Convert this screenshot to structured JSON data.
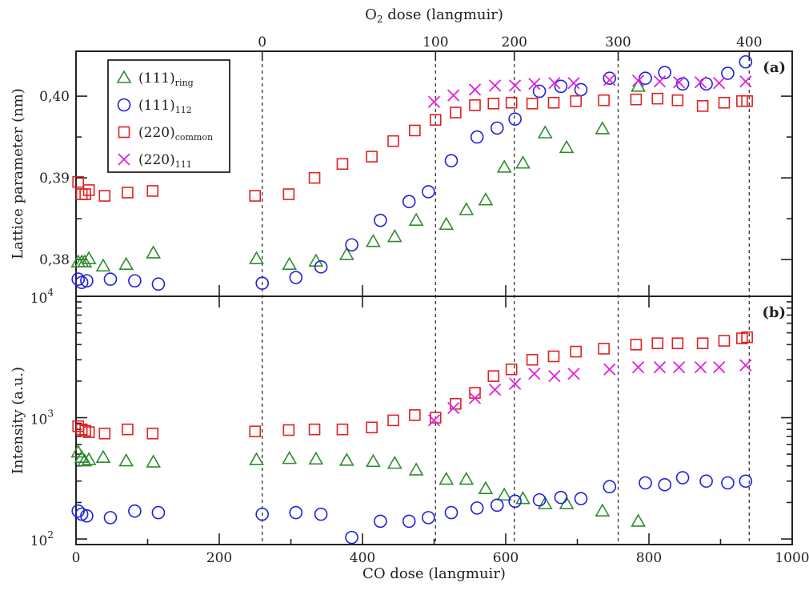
{
  "chart_data": {
    "type": "scatter",
    "colors": {
      "ring": "#2e8b2e",
      "p112": "#2020dd",
      "common": "#e02020",
      "p111": "#e020e0"
    },
    "x_axis": {
      "label": "CO dose (langmuir)",
      "range": [
        0,
        1000
      ],
      "ticks": [
        "0",
        "200",
        "400",
        "600",
        "800",
        "1000"
      ]
    },
    "top_axis": {
      "label_main": "O",
      "label_sub": "2",
      "label_tail": " dose (langmuir)",
      "ticks": [
        {
          "label": "0",
          "co": 260
        },
        {
          "label": "100",
          "co": 502
        },
        {
          "label": "200",
          "co": 612
        },
        {
          "label": "300",
          "co": 757
        },
        {
          "label": "400",
          "co": 940
        }
      ]
    },
    "dashed_lines_co": [
      260,
      502,
      612,
      757,
      940
    ],
    "legend": [
      {
        "key": "ring",
        "label_main": "(111)",
        "label_sub": "ring",
        "marker": "triangle",
        "color": "#2e8b2e"
      },
      {
        "key": "p112",
        "label_main": "(111)",
        "label_sub": "112",
        "marker": "circle",
        "color": "#2020dd"
      },
      {
        "key": "common",
        "label_main": "(220)",
        "label_sub": "common",
        "marker": "square",
        "color": "#e02020"
      },
      {
        "key": "p111",
        "label_main": "(220)",
        "label_sub": "111",
        "marker": "cross",
        "color": "#e020e0"
      }
    ],
    "panels": [
      {
        "id": "a",
        "panel_label": "(a)",
        "y_label": "Lattice parameter (nm)",
        "y_scale": "linear",
        "y_range": [
          0.3755,
          0.4055
        ],
        "y_ticks": [
          "0,38",
          "0,39",
          "0,40"
        ],
        "series": {
          "ring": {
            "x": [
              3,
              8,
              12,
              18,
              38,
              70,
              108,
              252,
              298,
              335,
              378,
              415,
              445,
              475,
              517,
              545,
              572,
              598,
              624,
              655,
              685,
              735,
              785
            ],
            "y": [
              0.3797,
              0.3797,
              0.3797,
              0.3801,
              0.3792,
              0.3794,
              0.3808,
              0.3801,
              0.3794,
              0.3798,
              0.3806,
              0.3822,
              0.3828,
              0.3848,
              0.3843,
              0.3861,
              0.3873,
              0.3913,
              0.3918,
              0.3955,
              0.3937,
              0.396,
              0.4012
            ]
          },
          "p112": {
            "x": [
              3,
              8,
              15,
              48,
              82,
              115,
              260,
              307,
              342,
              385,
              425,
              465,
              492,
              524,
              560,
              588,
              613,
              647,
              677,
              705,
              745,
              795,
              822,
              847,
              880,
              910,
              935
            ],
            "y": [
              0.3776,
              0.3772,
              0.3774,
              0.3776,
              0.3774,
              0.377,
              0.3771,
              0.3778,
              0.3791,
              0.3818,
              0.3848,
              0.3871,
              0.3883,
              0.3921,
              0.395,
              0.3961,
              0.3972,
              0.4006,
              0.4012,
              0.4008,
              0.4022,
              0.4022,
              0.4029,
              0.4015,
              0.4015,
              0.4028,
              0.4042
            ]
          },
          "common": {
            "x": [
              3,
              8,
              13,
              18,
              40,
              72,
              107,
              250,
              297,
              333,
              372,
              413,
              443,
              473,
              502,
              530,
              557,
              583,
              608,
              637,
              667,
              698,
              737,
              782,
              812,
              840,
              875,
              905,
              930,
              937
            ],
            "y": [
              0.3895,
              0.388,
              0.388,
              0.3885,
              0.3878,
              0.3882,
              0.3884,
              0.3878,
              0.388,
              0.39,
              0.3917,
              0.3926,
              0.3945,
              0.3958,
              0.3971,
              0.398,
              0.3989,
              0.3991,
              0.3992,
              0.3991,
              0.3992,
              0.3994,
              0.3995,
              0.3996,
              0.3997,
              0.3995,
              0.3988,
              0.3992,
              0.3994,
              0.3994
            ]
          },
          "p111": {
            "x": [
              500,
              527,
              557,
              585,
              613,
              640,
              668,
              695,
              745,
              785,
              815,
              842,
              872,
              898,
              935
            ],
            "y": [
              0.3993,
              0.4001,
              0.4008,
              0.4013,
              0.4013,
              0.4015,
              0.4016,
              0.4016,
              0.402,
              0.4019,
              0.4018,
              0.4017,
              0.4017,
              0.4016,
              0.4018
            ]
          }
        }
      },
      {
        "id": "b",
        "panel_label": "(b)",
        "y_label": "Intensity (a.u.)",
        "y_scale": "log",
        "y_range": [
          90,
          10000
        ],
        "y_ticks": [
          {
            "base": "10",
            "exp": "2",
            "value": 100
          },
          {
            "base": "10",
            "exp": "3",
            "value": 1000
          },
          {
            "base": "10",
            "exp": "4",
            "value": 10000
          }
        ],
        "series": {
          "ring": {
            "x": [
              3,
              8,
              12,
              18,
              38,
              70,
              108,
              252,
              298,
              335,
              378,
              415,
              445,
              475,
              517,
              545,
              572,
              598,
              624,
              655,
              685,
              735,
              785
            ],
            "y": [
              520,
              470,
              440,
              450,
              470,
              440,
              430,
              450,
              460,
              455,
              445,
              435,
              420,
              370,
              310,
              310,
              260,
              230,
              215,
              195,
              195,
              170,
              140
            ]
          },
          "p112": {
            "x": [
              3,
              8,
              15,
              48,
              82,
              115,
              260,
              307,
              342,
              385,
              425,
              465,
              492,
              524,
              560,
              588,
              613,
              647,
              677,
              705,
              745,
              795,
              822,
              847,
              880,
              910,
              935
            ],
            "y": [
              170,
              160,
              155,
              150,
              170,
              165,
              160,
              165,
              160,
              103,
              140,
              140,
              150,
              165,
              180,
              190,
              205,
              210,
              220,
              215,
              270,
              290,
              280,
              320,
              300,
              290,
              300
            ]
          },
          "common": {
            "x": [
              3,
              8,
              13,
              18,
              40,
              72,
              107,
              250,
              297,
              333,
              372,
              413,
              443,
              473,
              502,
              530,
              557,
              583,
              608,
              637,
              667,
              698,
              737,
              782,
              812,
              840,
              875,
              905,
              930,
              937
            ],
            "y": [
              850,
              800,
              780,
              760,
              740,
              800,
              740,
              770,
              790,
              800,
              800,
              830,
              950,
              1050,
              1000,
              1300,
              1600,
              2200,
              2500,
              3000,
              3200,
              3500,
              3700,
              4000,
              4100,
              4100,
              4100,
              4300,
              4500,
              4600
            ]
          },
          "p111": {
            "x": [
              500,
              527,
              557,
              585,
              613,
              640,
              668,
              695,
              745,
              785,
              815,
              842,
              872,
              898,
              935
            ],
            "y": [
              950,
              1200,
              1450,
              1700,
              1900,
              2300,
              2200,
              2300,
              2500,
              2600,
              2600,
              2600,
              2600,
              2600,
              2700
            ]
          }
        }
      }
    ]
  }
}
